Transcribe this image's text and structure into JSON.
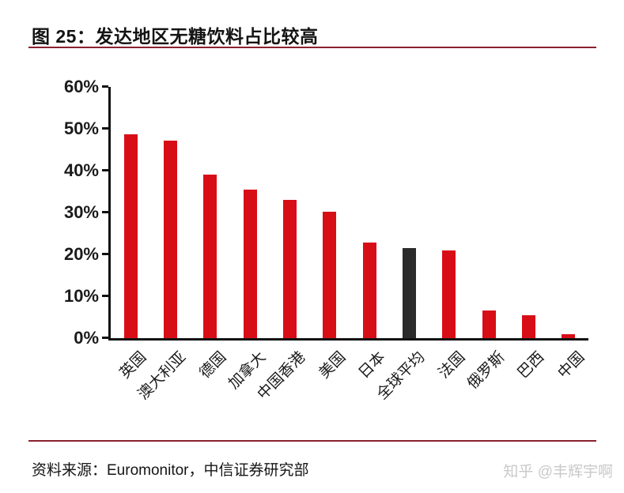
{
  "figure": {
    "title": "图 25：发达地区无糖饮料占比较高",
    "source": "资料来源：Euromonitor，中信证券研究部",
    "watermark": "知乎 @丰辉宇啊"
  },
  "colors": {
    "bar_default": "#d80e17",
    "bar_highlight": "#2b2b2b",
    "divider": "#8a2130",
    "axis": "#111111",
    "watermark": "#c9c9c9"
  },
  "chart_data": {
    "type": "bar",
    "title": "发达地区无糖饮料占比较高",
    "categories": [
      "英国",
      "澳大利亚",
      "德国",
      "加拿大",
      "中国香港",
      "美国",
      "日本",
      "全球平均",
      "法国",
      "俄罗斯",
      "巴西",
      "中国"
    ],
    "values": [
      48.7,
      47.2,
      39.1,
      35.4,
      33.0,
      30.1,
      22.8,
      21.6,
      21.0,
      6.6,
      5.4,
      0.9
    ],
    "bar_colors": [
      "#d80e17",
      "#d80e17",
      "#d80e17",
      "#d80e17",
      "#d80e17",
      "#d80e17",
      "#d80e17",
      "#2b2b2b",
      "#d80e17",
      "#d80e17",
      "#d80e17",
      "#d80e17"
    ],
    "highlight_category": "全球平均",
    "xlabel": "",
    "ylabel": "",
    "ylim": [
      0,
      60
    ],
    "ytick_step": 10,
    "ytick_labels": [
      "0%",
      "10%",
      "20%",
      "30%",
      "40%",
      "50%",
      "60%"
    ],
    "grid": false,
    "legend": "none"
  }
}
